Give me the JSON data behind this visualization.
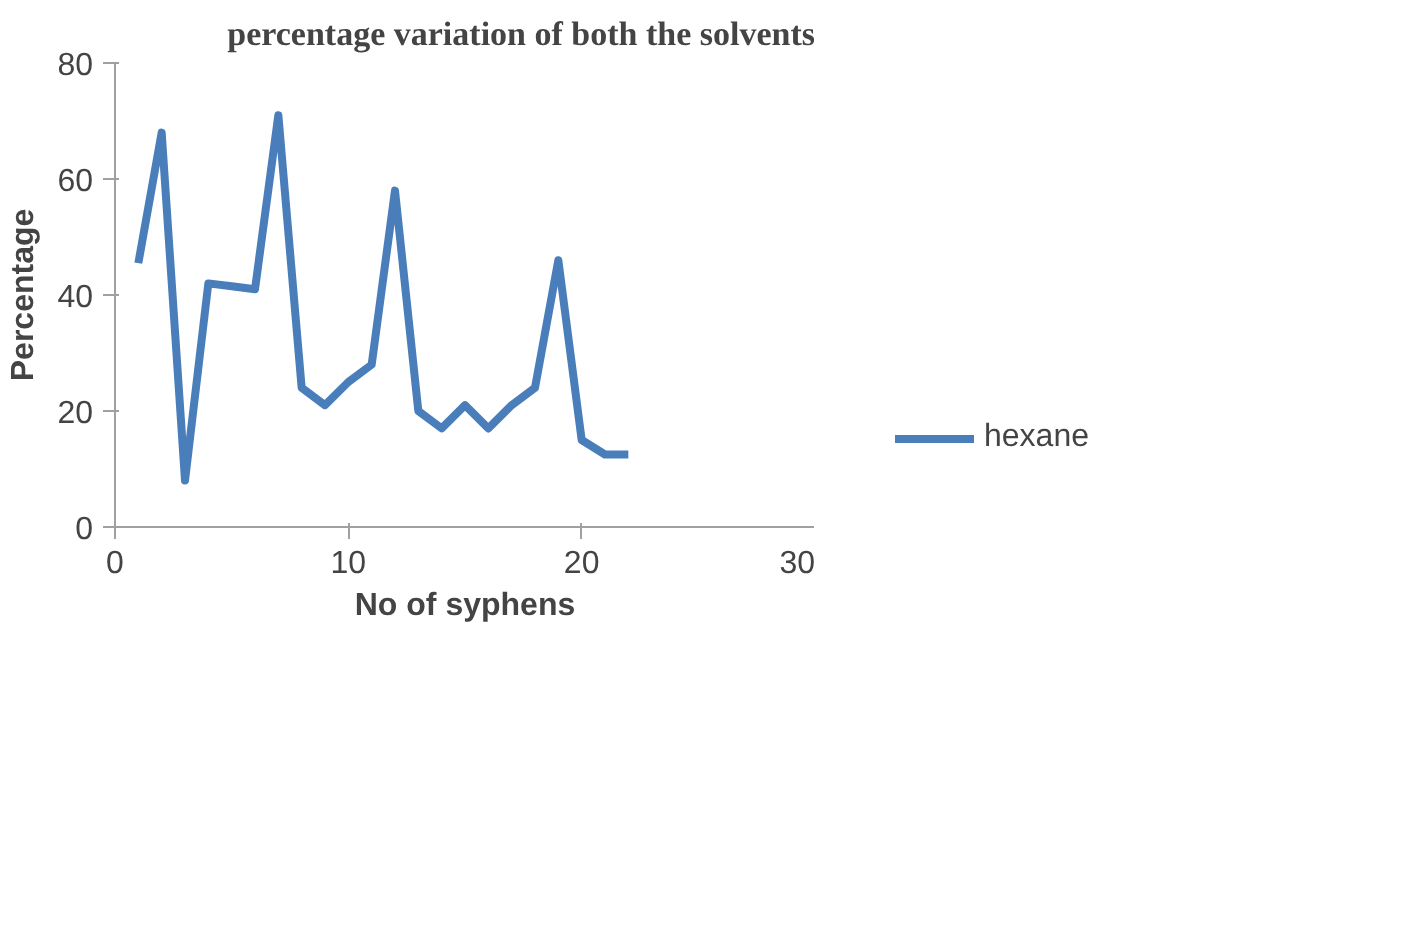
{
  "chart_data": {
    "type": "line",
    "title": "percentage variation of both the solvents",
    "xlabel": "No of syphens",
    "ylabel": "Percentage",
    "x": [
      1,
      2,
      3,
      4,
      5,
      6,
      7,
      8,
      9,
      10,
      11,
      12,
      13,
      14,
      15,
      16,
      17,
      18,
      19,
      20,
      21,
      22
    ],
    "series": [
      {
        "name": "hexane",
        "color": "#4a7ebb",
        "values": [
          45.5,
          68,
          8,
          42,
          41.5,
          41,
          71,
          24,
          21,
          25,
          28,
          58,
          20,
          17,
          21,
          17,
          21,
          24,
          46,
          15,
          12.5,
          12.5
        ]
      }
    ],
    "xlim": [
      0,
      30
    ],
    "xticks": [
      0,
      10,
      20,
      30
    ],
    "ylim": [
      0,
      80
    ],
    "yticks": [
      0,
      20,
      40,
      60,
      80
    ],
    "grid": false,
    "legend": "right",
    "marker": "none",
    "line_style": "solid"
  }
}
